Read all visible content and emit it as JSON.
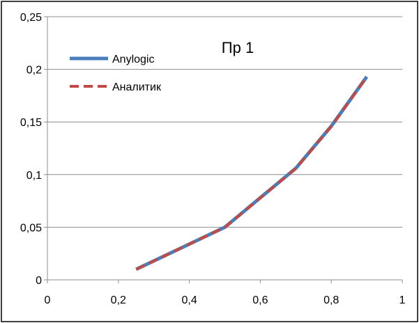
{
  "chart_data": {
    "type": "line",
    "title": "Пр 1",
    "xlabel": "",
    "ylabel": "",
    "xlim": [
      0,
      1
    ],
    "ylim": [
      0,
      0.25
    ],
    "x_ticks": [
      "0",
      "0,2",
      "0,4",
      "0,6",
      "0,8",
      "1"
    ],
    "x_tick_values": [
      0,
      0.2,
      0.4,
      0.6,
      0.8,
      1
    ],
    "y_ticks": [
      "0",
      "0,05",
      "0,1",
      "0,15",
      "0,2",
      "0,25"
    ],
    "y_tick_values": [
      0,
      0.05,
      0.1,
      0.15,
      0.2,
      0.25
    ],
    "grid": "horizontal",
    "legend_position": "top-left",
    "series": [
      {
        "name": "Anylogic",
        "color": "#4a7ebb",
        "style": "solid",
        "x": [
          0.25,
          0.5,
          0.7,
          0.8,
          0.9
        ],
        "y": [
          0.01,
          0.05,
          0.106,
          0.146,
          0.193
        ]
      },
      {
        "name": "Аналитик",
        "color": "#be4b48",
        "style": "dashed",
        "x": [
          0.25,
          0.5,
          0.7,
          0.8,
          0.9
        ],
        "y": [
          0.01,
          0.05,
          0.106,
          0.146,
          0.193
        ]
      }
    ]
  }
}
